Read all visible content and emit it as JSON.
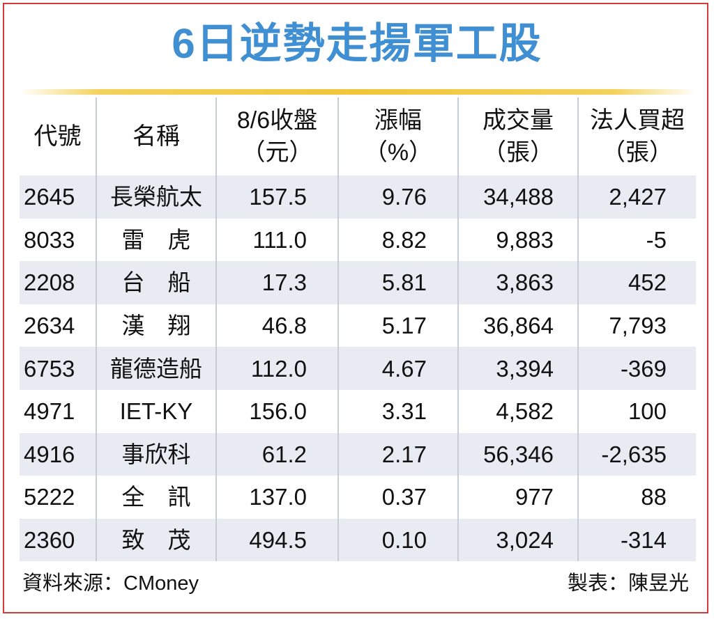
{
  "title": "6日逆勢走揚軍工股",
  "table": {
    "headers": [
      {
        "line1": "代號",
        "line2": ""
      },
      {
        "line1": "名稱",
        "line2": ""
      },
      {
        "line1": "8/6收盤",
        "line2": "（元）"
      },
      {
        "line1": "漲幅",
        "line2": "（%）"
      },
      {
        "line1": "成交量",
        "line2": "（張）"
      },
      {
        "line1": "法人買超",
        "line2": "（張）"
      }
    ],
    "rows": [
      {
        "code": "2645",
        "name": "長榮航太",
        "close": "157.5",
        "change": "9.76",
        "volume": "34,488",
        "net_buy": "2,427"
      },
      {
        "code": "8033",
        "name": "雷　虎",
        "close": "111.0",
        "change": "8.82",
        "volume": "9,883",
        "net_buy": "-5"
      },
      {
        "code": "2208",
        "name": "台　船",
        "close": "17.3",
        "change": "5.81",
        "volume": "3,863",
        "net_buy": "452"
      },
      {
        "code": "2634",
        "name": "漢　翔",
        "close": "46.8",
        "change": "5.17",
        "volume": "36,864",
        "net_buy": "7,793"
      },
      {
        "code": "6753",
        "name": "龍德造船",
        "close": "112.0",
        "change": "4.67",
        "volume": "3,394",
        "net_buy": "-369"
      },
      {
        "code": "4971",
        "name": "IET-KY",
        "close": "156.0",
        "change": "3.31",
        "volume": "4,582",
        "net_buy": "100"
      },
      {
        "code": "4916",
        "name": "事欣科",
        "close": "61.2",
        "change": "2.17",
        "volume": "56,346",
        "net_buy": "-2,635"
      },
      {
        "code": "5222",
        "name": "全　訊",
        "close": "137.0",
        "change": "0.37",
        "volume": "977",
        "net_buy": "88"
      },
      {
        "code": "2360",
        "name": "致　茂",
        "close": "494.5",
        "change": "0.10",
        "volume": "3,024",
        "net_buy": "-314"
      }
    ]
  },
  "footer": {
    "source": "資料來源：CMoney",
    "credit": "製表：陳昱光"
  },
  "colors": {
    "title": "#3f8fd2",
    "rule": "#f0c53a",
    "stripe": "#e9ebf3",
    "border": "#d9373a"
  }
}
